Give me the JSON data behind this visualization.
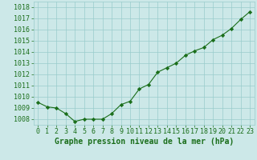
{
  "x": [
    0,
    1,
    2,
    3,
    4,
    5,
    6,
    7,
    8,
    9,
    10,
    11,
    12,
    13,
    14,
    15,
    16,
    17,
    18,
    19,
    20,
    21,
    22,
    23
  ],
  "y": [
    1009.5,
    1009.1,
    1009.0,
    1008.5,
    1007.8,
    1008.0,
    1008.0,
    1008.0,
    1008.5,
    1009.3,
    1009.6,
    1010.7,
    1011.1,
    1012.2,
    1012.6,
    1013.0,
    1013.7,
    1014.1,
    1014.4,
    1015.1,
    1015.5,
    1016.1,
    1016.9,
    1017.6
  ],
  "ylim": [
    1007.5,
    1018.5
  ],
  "yticks": [
    1008,
    1009,
    1010,
    1011,
    1012,
    1013,
    1014,
    1015,
    1016,
    1017,
    1018
  ],
  "xlim": [
    -0.5,
    23.5
  ],
  "xticks": [
    0,
    1,
    2,
    3,
    4,
    5,
    6,
    7,
    8,
    9,
    10,
    11,
    12,
    13,
    14,
    15,
    16,
    17,
    18,
    19,
    20,
    21,
    22,
    23
  ],
  "xlabel": "Graphe pression niveau de la mer (hPa)",
  "line_color": "#1a6e1a",
  "marker": "D",
  "marker_size": 2.2,
  "bg_color": "#cce8e8",
  "grid_color": "#99cccc",
  "xlabel_color": "#1a6e1a",
  "tick_color": "#1a6e1a",
  "xlabel_fontsize": 7,
  "ytick_fontsize": 6,
  "xtick_fontsize": 6
}
